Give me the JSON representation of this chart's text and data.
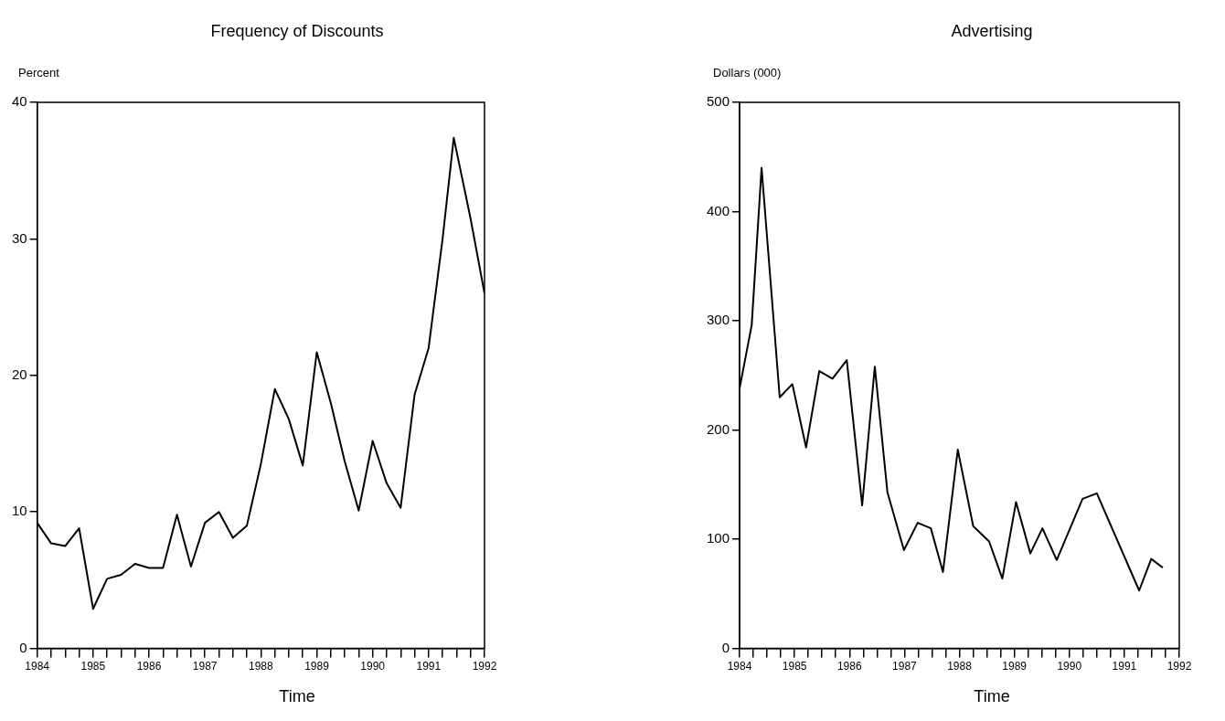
{
  "chart_data": [
    {
      "type": "line",
      "title": "Frequency of Discounts",
      "ylabel": "Percent",
      "xlabel": "Time",
      "xlim": [
        1984,
        1992
      ],
      "xticks": [
        1984,
        {
          "value": 1984.25,
          "label": null
        },
        {
          "value": 1984.5,
          "label": null
        },
        {
          "value": 1984.75,
          "label": null
        },
        1985,
        {
          "value": 1985.25,
          "label": null
        },
        {
          "value": 1985.5,
          "label": null
        },
        {
          "value": 1985.75,
          "label": null
        },
        1986,
        {
          "value": 1986.25,
          "label": null
        },
        {
          "value": 1986.5,
          "label": null
        },
        {
          "value": 1986.75,
          "label": null
        },
        1987,
        {
          "value": 1987.25,
          "label": null
        },
        {
          "value": 1987.5,
          "label": null
        },
        {
          "value": 1987.75,
          "label": null
        },
        1988,
        {
          "value": 1988.25,
          "label": null
        },
        {
          "value": 1988.5,
          "label": null
        },
        {
          "value": 1988.75,
          "label": null
        },
        1989,
        {
          "value": 1989.25,
          "label": null
        },
        {
          "value": 1989.5,
          "label": null
        },
        {
          "value": 1989.75,
          "label": null
        },
        1990,
        {
          "value": 1990.25,
          "label": null
        },
        {
          "value": 1990.5,
          "label": null
        },
        {
          "value": 1990.75,
          "label": null
        },
        1991,
        {
          "value": 1991.25,
          "label": null
        },
        {
          "value": 1991.5,
          "label": null
        },
        {
          "value": 1991.75,
          "label": null
        },
        1992
      ],
      "ylim": [
        0,
        40
      ],
      "yticks": [
        0,
        10,
        20,
        30,
        40
      ],
      "grid": false,
      "legend": false,
      "marker": "none",
      "x": [
        1984,
        1984.25,
        1984.5,
        1984.75,
        1985,
        1985.25,
        1985.5,
        1985.75,
        1986,
        1986.25,
        1986.5,
        1986.75,
        1987,
        1987.25,
        1987.5,
        1987.75,
        1988,
        1988.25,
        1988.5,
        1988.75,
        1989,
        1989.25,
        1989.5,
        1989.75,
        1990,
        1990.25,
        1990.5,
        1990.75,
        1991,
        1991.25,
        1991.45,
        1991.75,
        1992
      ],
      "series": [
        {
          "color": "#000000",
          "values": [
            9.2,
            7.7,
            7.5,
            8.8,
            2.9,
            5.1,
            5.4,
            6.2,
            5.9,
            5.9,
            9.8,
            6.0,
            9.2,
            10.0,
            8.1,
            9.0,
            13.5,
            19.0,
            16.8,
            13.4,
            21.7,
            18.0,
            13.7,
            10.1,
            15.2,
            12.1,
            10.3,
            18.6,
            22.0,
            30.0,
            37.4,
            31.5,
            26.0
          ]
        }
      ]
    },
    {
      "type": "line",
      "title": "Advertising",
      "ylabel": "Dollars (000)",
      "xlabel": "Time",
      "xlim": [
        1984,
        1992
      ],
      "xticks": [
        1984,
        {
          "value": 1984.25,
          "label": null
        },
        {
          "value": 1984.5,
          "label": null
        },
        {
          "value": 1984.75,
          "label": null
        },
        1985,
        {
          "value": 1985.25,
          "label": null
        },
        {
          "value": 1985.5,
          "label": null
        },
        {
          "value": 1985.75,
          "label": null
        },
        1986,
        {
          "value": 1986.25,
          "label": null
        },
        {
          "value": 1986.5,
          "label": null
        },
        {
          "value": 1986.75,
          "label": null
        },
        1987,
        {
          "value": 1987.25,
          "label": null
        },
        {
          "value": 1987.5,
          "label": null
        },
        {
          "value": 1987.75,
          "label": null
        },
        1988,
        {
          "value": 1988.25,
          "label": null
        },
        {
          "value": 1988.5,
          "label": null
        },
        {
          "value": 1988.75,
          "label": null
        },
        1989,
        {
          "value": 1989.25,
          "label": null
        },
        {
          "value": 1989.5,
          "label": null
        },
        {
          "value": 1989.75,
          "label": null
        },
        1990,
        {
          "value": 1990.25,
          "label": null
        },
        {
          "value": 1990.5,
          "label": null
        },
        {
          "value": 1990.75,
          "label": null
        },
        1991,
        {
          "value": 1991.25,
          "label": null
        },
        {
          "value": 1991.5,
          "label": null
        },
        {
          "value": 1991.75,
          "label": null
        },
        1992
      ],
      "ylim": [
        0,
        500
      ],
      "yticks": [
        0,
        100,
        200,
        300,
        400,
        500
      ],
      "grid": false,
      "legend": false,
      "marker": "none",
      "x": [
        1984,
        1984.22,
        1984.4,
        1984.73,
        1984.96,
        1985.21,
        1985.45,
        1985.69,
        1985.95,
        1986.23,
        1986.46,
        1986.69,
        1986.99,
        1987.24,
        1987.48,
        1987.7,
        1987.97,
        1988.25,
        1988.54,
        1988.78,
        1989.03,
        1989.29,
        1989.51,
        1989.77,
        1990.24,
        1990.5,
        1991.27,
        1991.49,
        1991.7
      ],
      "series": [
        {
          "color": "#000000",
          "values": [
            238,
            296,
            440,
            230,
            242,
            184,
            254,
            247,
            264,
            131,
            258,
            143,
            90,
            115,
            110,
            70,
            182,
            112,
            98,
            64,
            134,
            87,
            110,
            81,
            137,
            142,
            53,
            82,
            74
          ]
        }
      ]
    }
  ]
}
